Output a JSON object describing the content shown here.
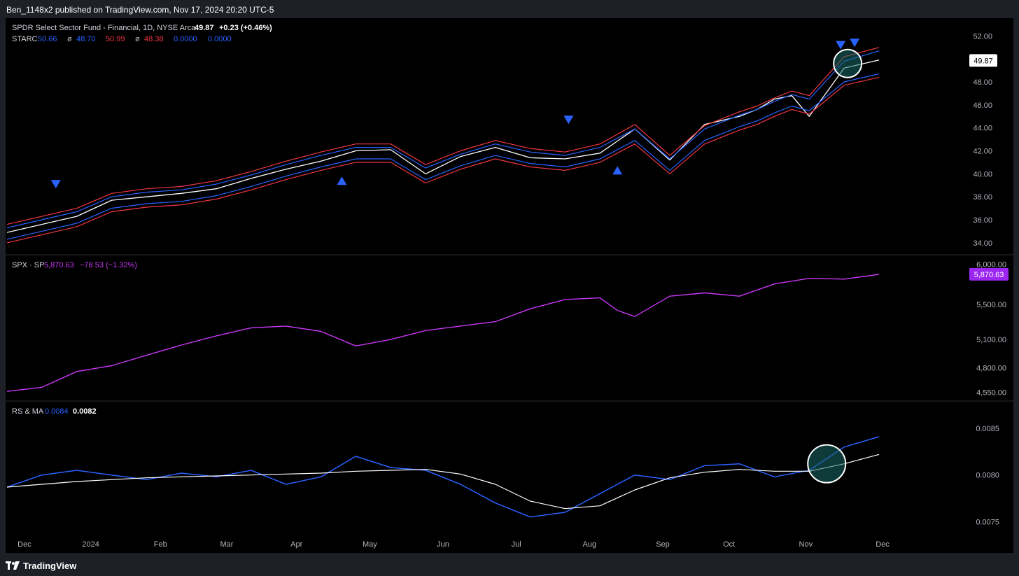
{
  "header": {
    "publisher": "Ben_1148x2 published on TradingView.com, Nov 17, 2024 20:20 UTC-5"
  },
  "footer": {
    "brand": "TradingView"
  },
  "chart_data": [
    {
      "type": "line",
      "legend": {
        "symbol": "SPDR Select Sector Fund - Financial, 1D, NYSE Arca",
        "last": "49.87",
        "change": "+0.23 (+0.46%)",
        "indicator": "STARC",
        "values": [
          {
            "text": "50.66",
            "color": "#2962ff"
          },
          {
            "text": "ø",
            "color": "#b2b5be"
          },
          {
            "text": "48.70",
            "color": "#2962ff"
          },
          {
            "text": "50.99",
            "color": "#f23645"
          },
          {
            "text": "ø",
            "color": "#b2b5be"
          },
          {
            "text": "48.38",
            "color": "#f23645"
          },
          {
            "text": "0.0000",
            "color": "#2962ff"
          },
          {
            "text": "0.0000",
            "color": "#2962ff"
          }
        ]
      },
      "yticks": [
        "52.00",
        "50.00",
        "48.00",
        "46.00",
        "44.00",
        "42.00",
        "40.00",
        "38.00",
        "36.00",
        "34.00"
      ],
      "ylim": [
        33.2,
        53.3
      ],
      "last_label": "49.87",
      "x": [
        0,
        10,
        20,
        30,
        40,
        50,
        60,
        70,
        80,
        90,
        100,
        110,
        120,
        130,
        140,
        150,
        160,
        170,
        180,
        190,
        200,
        210,
        215,
        220,
        225,
        230,
        240,
        250
      ],
      "series": [
        {
          "values": [
            34.9,
            35.6,
            36.3,
            37.7,
            38.0,
            38.3,
            38.7,
            39.6,
            40.4,
            41.1,
            42.0,
            42.1,
            40.0,
            41.5,
            42.3,
            41.4,
            41.3,
            41.8,
            43.9,
            41.2,
            44.3,
            45.0,
            45.6,
            46.5,
            46.8,
            45.0,
            49.2,
            49.9
          ],
          "color": "#ffffff"
        },
        {
          "values": [
            35.3,
            36.0,
            36.7,
            38.0,
            38.4,
            38.6,
            39.1,
            39.9,
            40.8,
            41.6,
            42.3,
            42.3,
            40.5,
            41.7,
            42.6,
            41.9,
            41.6,
            42.3,
            43.9,
            41.3,
            43.9,
            45.1,
            45.6,
            46.3,
            46.9,
            46.5,
            49.8,
            50.7
          ],
          "color": "#2962ff"
        },
        {
          "values": [
            34.3,
            35.0,
            35.7,
            37.0,
            37.4,
            37.6,
            38.1,
            38.9,
            39.8,
            40.6,
            41.3,
            41.3,
            39.5,
            40.7,
            41.6,
            40.9,
            40.6,
            41.3,
            42.9,
            40.3,
            42.9,
            44.1,
            44.6,
            45.3,
            45.9,
            45.5,
            48.0,
            48.7
          ],
          "color": "#2962ff"
        },
        {
          "values": [
            35.6,
            36.3,
            37.0,
            38.3,
            38.7,
            38.9,
            39.4,
            40.2,
            41.1,
            41.9,
            42.6,
            42.6,
            40.8,
            42.0,
            42.9,
            42.2,
            41.9,
            42.6,
            44.3,
            41.6,
            44.2,
            45.4,
            45.9,
            46.6,
            47.2,
            46.8,
            50.2,
            51.0
          ],
          "color": "#f23645"
        },
        {
          "values": [
            34.0,
            34.7,
            35.4,
            36.7,
            37.1,
            37.3,
            37.8,
            38.6,
            39.5,
            40.3,
            41.0,
            41.0,
            39.2,
            40.4,
            41.3,
            40.6,
            40.3,
            41.0,
            42.6,
            40.0,
            42.6,
            43.8,
            44.3,
            45.0,
            45.6,
            45.2,
            47.7,
            48.4
          ],
          "color": "#f23645"
        }
      ],
      "markers": [
        {
          "x": 14,
          "y": 39.1,
          "dir": "down"
        },
        {
          "x": 96,
          "y": 39.4,
          "dir": "up"
        },
        {
          "x": 161,
          "y": 44.7,
          "dir": "down"
        },
        {
          "x": 175,
          "y": 40.3,
          "dir": "up"
        },
        {
          "x": 239,
          "y": 51.2,
          "dir": "down"
        },
        {
          "x": 243,
          "y": 51.4,
          "dir": "down"
        }
      ],
      "highlight": {
        "x": 241,
        "y": 49.6
      }
    },
    {
      "type": "line",
      "legend": {
        "symbol": "SPX · SP",
        "last": "5,870.63",
        "change": "−78.53 (−1.32%)"
      },
      "yticks": [
        "6,000.00",
        "5,500.00",
        "5,100.00",
        "4,800.00",
        "4,550.00"
      ],
      "ylim": [
        4500,
        6050
      ],
      "last_label": "5,870.63",
      "x": [
        0,
        10,
        20,
        30,
        40,
        50,
        60,
        70,
        80,
        90,
        100,
        110,
        120,
        130,
        140,
        150,
        160,
        170,
        175,
        180,
        190,
        200,
        210,
        220,
        230,
        240,
        250
      ],
      "series": [
        {
          "name": "SPX · SP",
          "values": [
            4560,
            4600,
            4760,
            4820,
            4930,
            5040,
            5140,
            5230,
            5250,
            5190,
            5030,
            5100,
            5200,
            5250,
            5300,
            5450,
            5560,
            5580,
            5430,
            5360,
            5600,
            5640,
            5600,
            5750,
            5820,
            5810,
            5870
          ],
          "color": "#c837f4"
        }
      ]
    },
    {
      "type": "line",
      "legend": {
        "name": "RS & MA",
        "v1": "0.0084",
        "v2": "0.0082"
      },
      "yticks": [
        "0.0085",
        "0.0080",
        "0.0075"
      ],
      "ylim": [
        0.00739,
        0.00874
      ],
      "x": [
        0,
        10,
        20,
        30,
        40,
        50,
        60,
        70,
        80,
        90,
        100,
        110,
        120,
        130,
        140,
        150,
        160,
        170,
        180,
        190,
        200,
        210,
        220,
        230,
        240,
        250
      ],
      "series": [
        {
          "name": "RS",
          "values": [
            0.00787,
            0.008,
            0.00805,
            0.008,
            0.00795,
            0.00802,
            0.00798,
            0.00805,
            0.0079,
            0.00798,
            0.0082,
            0.00808,
            0.00805,
            0.0079,
            0.0077,
            0.00755,
            0.0076,
            0.0078,
            0.008,
            0.00795,
            0.0081,
            0.00812,
            0.00798,
            0.00805,
            0.0083,
            0.00841
          ],
          "color": "#2962ff"
        },
        {
          "name": "MA",
          "values": [
            0.00787,
            0.0079,
            0.00793,
            0.00795,
            0.00797,
            0.00798,
            0.00799,
            0.008,
            0.00801,
            0.00802,
            0.00804,
            0.00805,
            0.00806,
            0.00801,
            0.0079,
            0.00772,
            0.00764,
            0.00767,
            0.00784,
            0.00797,
            0.00803,
            0.00806,
            0.00804,
            0.00804,
            0.00812,
            0.00822
          ],
          "color": "#ffffff"
        }
      ],
      "highlight": {
        "x": 235,
        "y": 0.00812
      }
    }
  ],
  "xaxis": {
    "labels": [
      {
        "text": "Dec",
        "x": 5
      },
      {
        "text": "2024",
        "x": 24
      },
      {
        "text": "Feb",
        "x": 44
      },
      {
        "text": "Mar",
        "x": 63
      },
      {
        "text": "Apr",
        "x": 83
      },
      {
        "text": "May",
        "x": 104
      },
      {
        "text": "Jun",
        "x": 125
      },
      {
        "text": "Jul",
        "x": 146
      },
      {
        "text": "Aug",
        "x": 167
      },
      {
        "text": "Sep",
        "x": 188
      },
      {
        "text": "Oct",
        "x": 207
      },
      {
        "text": "Nov",
        "x": 229
      },
      {
        "text": "Dec",
        "x": 251
      }
    ]
  }
}
